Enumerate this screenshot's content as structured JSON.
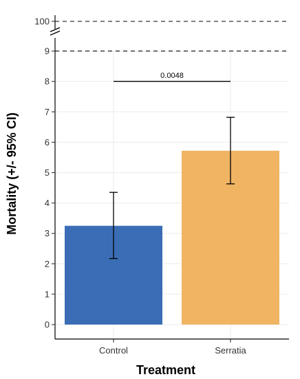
{
  "chart_data": {
    "type": "bar",
    "categories": [
      "Control",
      "Serratia"
    ],
    "values": [
      3.25,
      5.72
    ],
    "error_bars": [
      {
        "lower": 2.17,
        "upper": 4.35
      },
      {
        "lower": 4.63,
        "upper": 6.82
      }
    ],
    "colors": [
      "#3a6db5",
      "#f0b462"
    ],
    "xlabel": "Treatment",
    "ylabel": "Mortality (+/- 95% CI)",
    "ylim": [
      0,
      9
    ],
    "yticks": [
      "0",
      "1",
      "2",
      "3",
      "4",
      "5",
      "6",
      "7",
      "8",
      "9"
    ],
    "broken_axis": {
      "lower_top": 9,
      "upper_tick": "100",
      "dashed_reference_lines": [
        9,
        100
      ]
    },
    "significance": {
      "label": "0.0048",
      "between": [
        "Control",
        "Serratia"
      ],
      "y": 8
    },
    "grid": true,
    "legend": "none"
  }
}
